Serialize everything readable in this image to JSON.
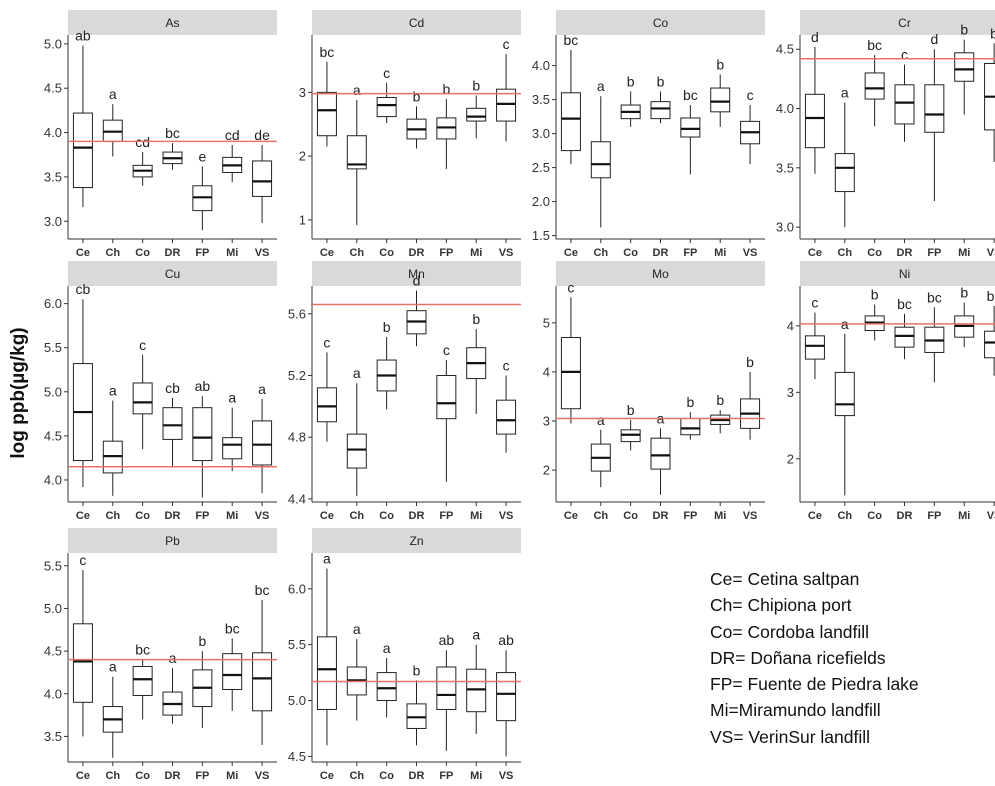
{
  "y_axis_label": "log ppb(µg/kg)",
  "colors": {
    "strip": "#d9d9d9",
    "reference_line": "#e8726a",
    "box": "#222222"
  },
  "legend": [
    "Ce= Cetina saltpan",
    "Ch= Chipiona port",
    "Co= Cordoba landfill",
    "DR= Doñana ricefields",
    "FP= Fuente de Piedra lake",
    "Mi=Miramundo landfill",
    "VS= VerinSur landfill"
  ],
  "chart_data": [
    {
      "type": "boxplot",
      "title": "As",
      "categories": [
        "Ce",
        "Ch",
        "Co",
        "DR",
        "FP",
        "Mi",
        "VS"
      ],
      "yticks": [
        3.0,
        3.5,
        4.0,
        4.5,
        5.0
      ],
      "tick_labels": [
        "3.0",
        "3.5",
        "4.0",
        "4.5",
        "5.0"
      ],
      "ylim": [
        2.8,
        5.1
      ],
      "reference_line": 3.9,
      "boxes": [
        {
          "min": 3.16,
          "q1": 3.38,
          "median": 3.83,
          "q3": 4.22,
          "max": 4.98,
          "letter": "ab"
        },
        {
          "min": 3.73,
          "q1": 3.9,
          "median": 4.01,
          "q3": 4.14,
          "max": 4.32,
          "letter": "a"
        },
        {
          "min": 3.4,
          "q1": 3.5,
          "median": 3.57,
          "q3": 3.63,
          "max": 3.78,
          "letter": "cd"
        },
        {
          "min": 3.58,
          "q1": 3.65,
          "median": 3.71,
          "q3": 3.78,
          "max": 3.88,
          "letter": "bc"
        },
        {
          "min": 2.9,
          "q1": 3.12,
          "median": 3.27,
          "q3": 3.4,
          "max": 3.62,
          "letter": "e"
        },
        {
          "min": 3.44,
          "q1": 3.55,
          "median": 3.63,
          "q3": 3.72,
          "max": 3.86,
          "letter": "cd"
        },
        {
          "min": 2.98,
          "q1": 3.28,
          "median": 3.45,
          "q3": 3.68,
          "max": 3.86,
          "letter": "de"
        }
      ]
    },
    {
      "type": "boxplot",
      "title": "Cd",
      "categories": [
        "Ce",
        "Ch",
        "Co",
        "DR",
        "FP",
        "Mi",
        "VS"
      ],
      "yticks": [
        1,
        2,
        3
      ],
      "tick_labels": [
        "1",
        "2",
        "3"
      ],
      "ylim": [
        0.7,
        3.9
      ],
      "reference_line": 2.98,
      "boxes": [
        {
          "min": 2.15,
          "q1": 2.32,
          "median": 2.72,
          "q3": 3.0,
          "max": 3.48,
          "letter": "bc"
        },
        {
          "min": 0.92,
          "q1": 1.8,
          "median": 1.87,
          "q3": 2.32,
          "max": 2.88,
          "letter": "a"
        },
        {
          "min": 2.52,
          "q1": 2.62,
          "median": 2.8,
          "q3": 2.92,
          "max": 3.15,
          "letter": "c"
        },
        {
          "min": 2.12,
          "q1": 2.27,
          "median": 2.42,
          "q3": 2.58,
          "max": 2.78,
          "letter": "b"
        },
        {
          "min": 1.8,
          "q1": 2.27,
          "median": 2.45,
          "q3": 2.6,
          "max": 2.9,
          "letter": "b"
        },
        {
          "min": 2.28,
          "q1": 2.55,
          "median": 2.62,
          "q3": 2.75,
          "max": 2.95,
          "letter": "b"
        },
        {
          "min": 2.23,
          "q1": 2.55,
          "median": 2.82,
          "q3": 3.05,
          "max": 3.6,
          "letter": "c"
        }
      ]
    },
    {
      "type": "boxplot",
      "title": "Co",
      "categories": [
        "Ce",
        "Ch",
        "Co",
        "DR",
        "FP",
        "Mi",
        "VS"
      ],
      "yticks": [
        1.5,
        2.0,
        2.5,
        3.0,
        3.5,
        4.0
      ],
      "tick_labels": [
        "1.5",
        "2.0",
        "2.5",
        "3.0",
        "3.5",
        "4.0"
      ],
      "ylim": [
        1.45,
        4.45
      ],
      "reference_line": null,
      "boxes": [
        {
          "min": 2.55,
          "q1": 2.75,
          "median": 3.22,
          "q3": 3.6,
          "max": 4.23,
          "letter": "bc"
        },
        {
          "min": 1.62,
          "q1": 2.35,
          "median": 2.55,
          "q3": 2.88,
          "max": 3.55,
          "letter": "a"
        },
        {
          "min": 3.1,
          "q1": 3.22,
          "median": 3.32,
          "q3": 3.42,
          "max": 3.62,
          "letter": "b"
        },
        {
          "min": 3.15,
          "q1": 3.22,
          "median": 3.37,
          "q3": 3.47,
          "max": 3.62,
          "letter": "b"
        },
        {
          "min": 2.4,
          "q1": 2.95,
          "median": 3.07,
          "q3": 3.23,
          "max": 3.42,
          "letter": "bc"
        },
        {
          "min": 3.1,
          "q1": 3.32,
          "median": 3.47,
          "q3": 3.67,
          "max": 3.87,
          "letter": "b"
        },
        {
          "min": 2.55,
          "q1": 2.85,
          "median": 3.02,
          "q3": 3.18,
          "max": 3.42,
          "letter": "c"
        }
      ]
    },
    {
      "type": "boxplot",
      "title": "Cr",
      "categories": [
        "Ce",
        "Ch",
        "Co",
        "DR",
        "FP",
        "Mi",
        "VS"
      ],
      "yticks": [
        3.0,
        3.5,
        4.0,
        4.5
      ],
      "tick_labels": [
        "3.0",
        "3.5",
        "4.0",
        "4.5"
      ],
      "ylim": [
        2.9,
        4.62
      ],
      "reference_line": 4.42,
      "boxes": [
        {
          "min": 3.45,
          "q1": 3.67,
          "median": 3.92,
          "q3": 4.12,
          "max": 4.52,
          "letter": "d"
        },
        {
          "min": 3.0,
          "q1": 3.3,
          "median": 3.5,
          "q3": 3.62,
          "max": 4.05,
          "letter": "a"
        },
        {
          "min": 3.85,
          "q1": 4.08,
          "median": 4.17,
          "q3": 4.3,
          "max": 4.45,
          "letter": "bc"
        },
        {
          "min": 3.72,
          "q1": 3.87,
          "median": 4.05,
          "q3": 4.2,
          "max": 4.37,
          "letter": "c"
        },
        {
          "min": 3.22,
          "q1": 3.8,
          "median": 3.95,
          "q3": 4.2,
          "max": 4.5,
          "letter": "d"
        },
        {
          "min": 3.95,
          "q1": 4.23,
          "median": 4.33,
          "q3": 4.47,
          "max": 4.58,
          "letter": "b"
        },
        {
          "min": 3.55,
          "q1": 3.82,
          "median": 4.1,
          "q3": 4.38,
          "max": 4.55,
          "letter": "b"
        }
      ]
    },
    {
      "type": "boxplot",
      "title": "Cu",
      "categories": [
        "Ce",
        "Ch",
        "Co",
        "DR",
        "FP",
        "Mi",
        "VS"
      ],
      "yticks": [
        4.0,
        4.5,
        5.0,
        5.5,
        6.0
      ],
      "tick_labels": [
        "4.0",
        "4.5",
        "5.0",
        "5.5",
        "6.0"
      ],
      "ylim": [
        3.75,
        6.2
      ],
      "reference_line": 4.15,
      "boxes": [
        {
          "min": 3.92,
          "q1": 4.22,
          "median": 4.77,
          "q3": 5.32,
          "max": 6.05,
          "letter": "cb"
        },
        {
          "min": 3.82,
          "q1": 4.08,
          "median": 4.27,
          "q3": 4.44,
          "max": 4.9,
          "letter": "a"
        },
        {
          "min": 4.35,
          "q1": 4.75,
          "median": 4.88,
          "q3": 5.1,
          "max": 5.42,
          "letter": "c"
        },
        {
          "min": 4.15,
          "q1": 4.46,
          "median": 4.62,
          "q3": 4.82,
          "max": 4.93,
          "letter": "cb"
        },
        {
          "min": 3.8,
          "q1": 4.22,
          "median": 4.48,
          "q3": 4.82,
          "max": 4.95,
          "letter": "ab"
        },
        {
          "min": 4.1,
          "q1": 4.24,
          "median": 4.4,
          "q3": 4.48,
          "max": 4.82,
          "letter": "a"
        },
        {
          "min": 3.85,
          "q1": 4.17,
          "median": 4.4,
          "q3": 4.67,
          "max": 4.92,
          "letter": "a"
        }
      ]
    },
    {
      "type": "boxplot",
      "title": "Mn",
      "categories": [
        "Ce",
        "Ch",
        "Co",
        "DR",
        "FP",
        "Mi",
        "VS"
      ],
      "yticks": [
        4.4,
        4.8,
        5.2,
        5.6
      ],
      "tick_labels": [
        "4.4",
        "4.8",
        "5.2",
        "5.6"
      ],
      "ylim": [
        4.38,
        5.78
      ],
      "reference_line": 5.66,
      "boxes": [
        {
          "min": 4.77,
          "q1": 4.9,
          "median": 5.0,
          "q3": 5.12,
          "max": 5.35,
          "letter": "c"
        },
        {
          "min": 4.42,
          "q1": 4.6,
          "median": 4.72,
          "q3": 4.82,
          "max": 5.15,
          "letter": "a"
        },
        {
          "min": 4.98,
          "q1": 5.1,
          "median": 5.2,
          "q3": 5.3,
          "max": 5.45,
          "letter": "b"
        },
        {
          "min": 5.39,
          "q1": 5.47,
          "median": 5.55,
          "q3": 5.62,
          "max": 5.75,
          "letter": "d"
        },
        {
          "min": 4.51,
          "q1": 4.92,
          "median": 5.02,
          "q3": 5.2,
          "max": 5.3,
          "letter": "c"
        },
        {
          "min": 4.95,
          "q1": 5.18,
          "median": 5.28,
          "q3": 5.38,
          "max": 5.5,
          "letter": "b"
        },
        {
          "min": 4.7,
          "q1": 4.82,
          "median": 4.91,
          "q3": 5.04,
          "max": 5.2,
          "letter": "c"
        }
      ]
    },
    {
      "type": "boxplot",
      "title": "Mo",
      "categories": [
        "Ce",
        "Ch",
        "Co",
        "DR",
        "FP",
        "Mi",
        "VS"
      ],
      "yticks": [
        2,
        3,
        4,
        5
      ],
      "tick_labels": [
        "2",
        "3",
        "4",
        "5"
      ],
      "ylim": [
        1.35,
        5.75
      ],
      "reference_line": 3.05,
      "boxes": [
        {
          "min": 2.95,
          "q1": 3.25,
          "median": 4.0,
          "q3": 4.7,
          "max": 5.52,
          "letter": "c"
        },
        {
          "min": 1.65,
          "q1": 1.98,
          "median": 2.25,
          "q3": 2.53,
          "max": 2.82,
          "letter": "a"
        },
        {
          "min": 2.4,
          "q1": 2.58,
          "median": 2.72,
          "q3": 2.82,
          "max": 3.02,
          "letter": "b"
        },
        {
          "min": 1.5,
          "q1": 2.02,
          "median": 2.3,
          "q3": 2.65,
          "max": 2.85,
          "letter": "a"
        },
        {
          "min": 2.62,
          "q1": 2.72,
          "median": 2.85,
          "q3": 3.05,
          "max": 3.18,
          "letter": "b"
        },
        {
          "min": 2.75,
          "q1": 2.93,
          "median": 3.02,
          "q3": 3.12,
          "max": 3.22,
          "letter": "b"
        },
        {
          "min": 2.62,
          "q1": 2.85,
          "median": 3.15,
          "q3": 3.45,
          "max": 4.0,
          "letter": "b"
        }
      ]
    },
    {
      "type": "boxplot",
      "title": "Ni",
      "categories": [
        "Ce",
        "Ch",
        "Co",
        "DR",
        "FP",
        "Mi",
        "VS"
      ],
      "yticks": [
        2,
        3,
        4
      ],
      "tick_labels": [
        "2",
        "3",
        "4"
      ],
      "ylim": [
        1.35,
        4.6
      ],
      "reference_line": 4.03,
      "boxes": [
        {
          "min": 3.2,
          "q1": 3.5,
          "median": 3.7,
          "q3": 3.85,
          "max": 4.2,
          "letter": "c"
        },
        {
          "min": 1.45,
          "q1": 2.65,
          "median": 2.82,
          "q3": 3.3,
          "max": 3.88,
          "letter": "a"
        },
        {
          "min": 3.78,
          "q1": 3.93,
          "median": 4.05,
          "q3": 4.15,
          "max": 4.32,
          "letter": "b"
        },
        {
          "min": 3.5,
          "q1": 3.68,
          "median": 3.85,
          "q3": 3.98,
          "max": 4.18,
          "letter": "bc"
        },
        {
          "min": 3.15,
          "q1": 3.6,
          "median": 3.78,
          "q3": 3.98,
          "max": 4.28,
          "letter": "bc"
        },
        {
          "min": 3.68,
          "q1": 3.83,
          "median": 4.0,
          "q3": 4.15,
          "max": 4.35,
          "letter": "b"
        },
        {
          "min": 3.25,
          "q1": 3.52,
          "median": 3.75,
          "q3": 3.92,
          "max": 4.3,
          "letter": "bc"
        }
      ]
    },
    {
      "type": "boxplot",
      "title": "Pb",
      "categories": [
        "Ce",
        "Ch",
        "Co",
        "DR",
        "FP",
        "Mi",
        "VS"
      ],
      "yticks": [
        3.5,
        4.0,
        4.5,
        5.0,
        5.5
      ],
      "tick_labels": [
        "3.5",
        "4.0",
        "4.5",
        "5.0",
        "5.5"
      ],
      "ylim": [
        3.2,
        5.65
      ],
      "reference_line": 4.4,
      "boxes": [
        {
          "min": 3.5,
          "q1": 3.9,
          "median": 4.38,
          "q3": 4.82,
          "max": 5.45,
          "letter": "c"
        },
        {
          "min": 3.25,
          "q1": 3.55,
          "median": 3.7,
          "q3": 3.85,
          "max": 4.2,
          "letter": "a"
        },
        {
          "min": 3.7,
          "q1": 3.98,
          "median": 4.17,
          "q3": 4.32,
          "max": 4.4,
          "letter": "bc"
        },
        {
          "min": 3.65,
          "q1": 3.75,
          "median": 3.88,
          "q3": 4.02,
          "max": 4.3,
          "letter": "a"
        },
        {
          "min": 3.6,
          "q1": 3.85,
          "median": 4.07,
          "q3": 4.28,
          "max": 4.5,
          "letter": "b"
        },
        {
          "min": 3.8,
          "q1": 4.05,
          "median": 4.22,
          "q3": 4.47,
          "max": 4.65,
          "letter": "bc"
        },
        {
          "min": 3.4,
          "q1": 3.8,
          "median": 4.18,
          "q3": 4.48,
          "max": 5.1,
          "letter": "bc"
        }
      ]
    },
    {
      "type": "boxplot",
      "title": "Zn",
      "categories": [
        "Ce",
        "Ch",
        "Co",
        "DR",
        "FP",
        "Mi",
        "VS"
      ],
      "yticks": [
        4.5,
        5.0,
        5.5,
        6.0
      ],
      "tick_labels": [
        "4.5",
        "5.0",
        "5.5",
        "6.0"
      ],
      "ylim": [
        4.45,
        6.32
      ],
      "reference_line": 5.17,
      "boxes": [
        {
          "min": 4.6,
          "q1": 4.92,
          "median": 5.28,
          "q3": 5.57,
          "max": 6.18,
          "letter": "a"
        },
        {
          "min": 4.82,
          "q1": 5.05,
          "median": 5.18,
          "q3": 5.3,
          "max": 5.55,
          "letter": "a"
        },
        {
          "min": 4.85,
          "q1": 5.0,
          "median": 5.11,
          "q3": 5.25,
          "max": 5.38,
          "letter": "a"
        },
        {
          "min": 4.6,
          "q1": 4.75,
          "median": 4.85,
          "q3": 4.97,
          "max": 5.18,
          "letter": "b"
        },
        {
          "min": 4.55,
          "q1": 4.92,
          "median": 5.05,
          "q3": 5.3,
          "max": 5.45,
          "letter": "ab"
        },
        {
          "min": 4.7,
          "q1": 4.9,
          "median": 5.1,
          "q3": 5.28,
          "max": 5.5,
          "letter": "a"
        },
        {
          "min": 4.5,
          "q1": 4.82,
          "median": 5.06,
          "q3": 5.25,
          "max": 5.45,
          "letter": "ab"
        }
      ]
    }
  ]
}
